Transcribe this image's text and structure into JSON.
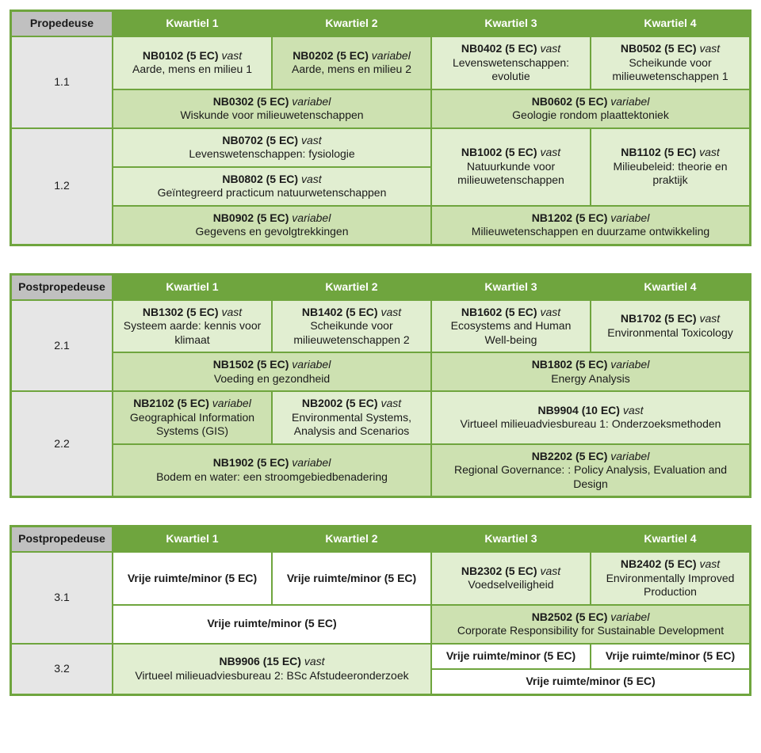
{
  "colors": {
    "header_green": "#6fa53e",
    "pale_green": "#e1eed1",
    "mid_green": "#cde1b1",
    "grey_header": "#c0c0c0",
    "grey_side": "#e6e6e6",
    "white": "#ffffff"
  },
  "headers": {
    "propedeuse": "Propedeuse",
    "postpropedeuse": "Postpropedeuse",
    "q1": "Kwartiel 1",
    "q2": "Kwartiel 2",
    "q3": "Kwartiel 3",
    "q4": "Kwartiel 4"
  },
  "rows": {
    "r11": "1.1",
    "r12": "1.2",
    "r21": "2.1",
    "r22": "2.2",
    "r31": "3.1",
    "r32": "3.2"
  },
  "free": "Vrije ruimte/minor (5 EC)",
  "c": {
    "nb0102": {
      "code": "NB0102 (5 EC)",
      "status": "vast",
      "title": "Aarde, mens en milieu 1"
    },
    "nb0202": {
      "code": "NB0202 (5 EC)",
      "status": "variabel",
      "title": "Aarde, mens en milieu 2"
    },
    "nb0402": {
      "code": "NB0402 (5 EC)",
      "status": "vast",
      "title": "Levenswetenschappen: evolutie"
    },
    "nb0502": {
      "code": "NB0502 (5 EC)",
      "status": "vast",
      "title": "Scheikunde voor milieuwetenschappen 1"
    },
    "nb0302": {
      "code": "NB0302 (5 EC)",
      "status": "variabel",
      "title": "Wiskunde voor milieuwetenschappen"
    },
    "nb0602": {
      "code": "NB0602 (5 EC)",
      "status": "variabel",
      "title": "Geologie rondom plaattektoniek"
    },
    "nb0702": {
      "code": "NB0702 (5 EC)",
      "status": "vast",
      "title": "Levenswetenschappen: fysiologie"
    },
    "nb0802": {
      "code": "NB0802 (5 EC)",
      "status": "vast",
      "title": "Geïntegreerd practicum natuurwetenschappen"
    },
    "nb0902": {
      "code": "NB0902 (5 EC)",
      "status": "variabel",
      "title": "Gegevens en gevolgtrekkingen"
    },
    "nb1002": {
      "code": "NB1002 (5 EC)",
      "status": "vast",
      "title": "Natuurkunde voor milieuwetenschappen"
    },
    "nb1102": {
      "code": "NB1102 (5 EC)",
      "status": "vast",
      "title": "Milieubeleid: theorie en praktijk"
    },
    "nb1202": {
      "code": "NB1202 (5 EC)",
      "status": "variabel",
      "title": "Milieuwetenschappen en duurzame ontwikkeling"
    },
    "nb1302": {
      "code": "NB1302 (5 EC)",
      "status": "vast",
      "title": "Systeem aarde: kennis voor klimaat"
    },
    "nb1402": {
      "code": "NB1402 (5 EC)",
      "status": "vast",
      "title": "Scheikunde voor milieuwetenschappen 2"
    },
    "nb1602": {
      "code": "NB1602 (5 EC)",
      "status": "vast",
      "title": "Ecosystems and Human Well-being"
    },
    "nb1702": {
      "code": "NB1702 (5 EC)",
      "status": "vast",
      "title": "Environmental Toxicology"
    },
    "nb1502": {
      "code": "NB1502 (5 EC)",
      "status": "variabel",
      "title": "Voeding en gezondheid"
    },
    "nb1802": {
      "code": "NB1802 (5 EC)",
      "status": "variabel",
      "title": "Energy Analysis"
    },
    "nb2102": {
      "code": "NB2102 (5 EC)",
      "status": "variabel",
      "title": "Geographical Information Systems (GIS)"
    },
    "nb2002": {
      "code": "NB2002 (5 EC)",
      "status": "vast",
      "title": "Environmental Systems, Analysis and Scenarios"
    },
    "nb9904": {
      "code": "NB9904 (10 EC)",
      "status": "vast",
      "title": "Virtueel milieuadviesbureau 1: Onderzoeksmethoden"
    },
    "nb1902": {
      "code": "NB1902 (5 EC)",
      "status": "variabel",
      "title": "Bodem en water: een stroomgebiedbenadering"
    },
    "nb2202": {
      "code": "NB2202 (5 EC)",
      "status": "variabel",
      "title": "Regional Governance: : Policy Analysis, Evaluation and Design"
    },
    "nb2302": {
      "code": "NB2302 (5 EC)",
      "status": "vast",
      "title": "Voedselveiligheid"
    },
    "nb2402": {
      "code": "NB2402 (5 EC)",
      "status": "vast",
      "title": "Environmentally Improved Production"
    },
    "nb2502": {
      "code": "NB2502 (5 EC)",
      "status": "variabel",
      "title": "Corporate Responsibility for Sustainable Development"
    },
    "nb9906": {
      "code": "NB9906 (15 EC)",
      "status": "vast",
      "title": "Virtueel milieuadviesbureau 2: BSc Afstudeeronderzoek"
    }
  }
}
